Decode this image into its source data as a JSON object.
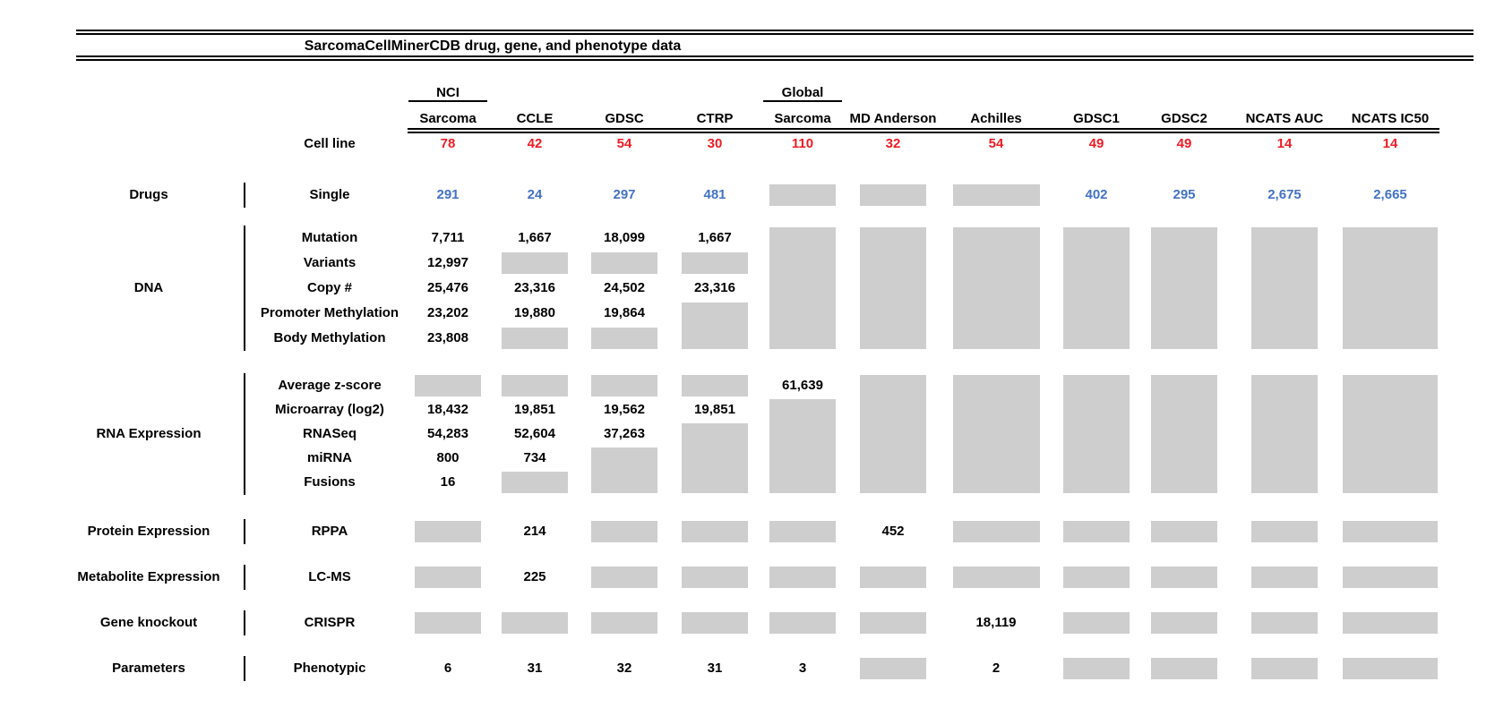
{
  "colors": {
    "red_count": "#ed1c24",
    "blue_drug": "#4472c4",
    "gray_missing": "#cecece",
    "rule_black": "#000000"
  },
  "chart_data": {
    "type": "table",
    "title": "SarcomaCellMinerCDB drug, gene, and phenotype data",
    "cell_line_label": "Cell line",
    "columns": [
      {
        "id": "nci-sarcoma",
        "top": "NCI",
        "label": "Sarcoma",
        "cell_lines": "78"
      },
      {
        "id": "ccle",
        "top": null,
        "label": "CCLE",
        "cell_lines": "42"
      },
      {
        "id": "gdsc",
        "top": null,
        "label": "GDSC",
        "cell_lines": "54"
      },
      {
        "id": "ctrp",
        "top": null,
        "label": "CTRP",
        "cell_lines": "30"
      },
      {
        "id": "global-sarcoma",
        "top": "Global",
        "label": "Sarcoma",
        "cell_lines": "110"
      },
      {
        "id": "md-anderson",
        "top": null,
        "label": "MD Anderson",
        "cell_lines": "32"
      },
      {
        "id": "achilles",
        "top": null,
        "label": "Achilles",
        "cell_lines": "54"
      },
      {
        "id": "gdsc1",
        "top": null,
        "label": "GDSC1",
        "cell_lines": "49"
      },
      {
        "id": "gdsc2",
        "top": null,
        "label": "GDSC2",
        "cell_lines": "49"
      },
      {
        "id": "ncats-auc",
        "top": null,
        "label": "NCATS AUC",
        "cell_lines": "14"
      },
      {
        "id": "ncats-ic50",
        "top": null,
        "label": "NCATS IC50",
        "cell_lines": "14"
      }
    ],
    "sections": [
      {
        "category": "Drugs",
        "rows": [
          {
            "label": "Single",
            "color": "blue",
            "cells": [
              "291",
              "24",
              "297",
              "481",
              {
                "gap": 1
              },
              {
                "gap": 1
              },
              {
                "gap": 1
              },
              "402",
              "295",
              "2,675",
              "2,665"
            ]
          }
        ]
      },
      {
        "category": "DNA",
        "rows": [
          {
            "label": "Mutation",
            "cells": [
              "7,711",
              "1,667",
              "18,099",
              "1,667",
              {
                "gap": 5
              },
              {
                "gap": 5
              },
              {
                "gap": 5
              },
              {
                "gap": 5
              },
              {
                "gap": 5
              },
              {
                "gap": 5
              },
              {
                "gap": 5
              }
            ]
          },
          {
            "label": "Variants",
            "cells": [
              "12,997",
              {
                "gap": 1
              },
              {
                "gap": 1
              },
              {
                "gap": 1
              },
              null,
              null,
              null,
              null,
              null,
              null,
              null
            ]
          },
          {
            "label": "Copy #",
            "cells": [
              "25,476",
              "23,316",
              "24,502",
              "23,316",
              null,
              null,
              null,
              null,
              null,
              null,
              null
            ]
          },
          {
            "label": "Promoter Methylation",
            "cells": [
              "23,202",
              "19,880",
              "19,864",
              {
                "gap": 2
              },
              null,
              null,
              null,
              null,
              null,
              null,
              null
            ]
          },
          {
            "label": "Body Methylation",
            "cells": [
              "23,808",
              {
                "gap": 1
              },
              {
                "gap": 1
              },
              null,
              null,
              null,
              null,
              null,
              null,
              null,
              null
            ]
          }
        ]
      },
      {
        "category": "RNA Expression",
        "rows": [
          {
            "label": "Average z-score",
            "cells": [
              {
                "gap": 1
              },
              {
                "gap": 1
              },
              {
                "gap": 1
              },
              {
                "gap": 1
              },
              "61,639",
              {
                "gap": 5
              },
              {
                "gap": 5
              },
              {
                "gap": 5
              },
              {
                "gap": 5
              },
              {
                "gap": 5
              },
              {
                "gap": 5
              }
            ]
          },
          {
            "label": "Microarray (log2)",
            "cells": [
              "18,432",
              "19,851",
              "19,562",
              "19,851",
              {
                "gap": 4
              },
              null,
              null,
              null,
              null,
              null,
              null
            ]
          },
          {
            "label": "RNASeq",
            "cells": [
              "54,283",
              "52,604",
              "37,263",
              {
                "gap": 3
              },
              null,
              null,
              null,
              null,
              null,
              null,
              null
            ]
          },
          {
            "label": "miRNA",
            "cells": [
              "800",
              "734",
              {
                "gap": 2
              },
              null,
              null,
              null,
              null,
              null,
              null,
              null,
              null
            ]
          },
          {
            "label": "Fusions",
            "cells": [
              "16",
              {
                "gap": 1
              },
              null,
              null,
              null,
              null,
              null,
              null,
              null,
              null,
              null
            ]
          }
        ]
      },
      {
        "category": "Protein Expression",
        "rows": [
          {
            "label": "RPPA",
            "cells": [
              {
                "gap": 1
              },
              "214",
              {
                "gap": 1
              },
              {
                "gap": 1
              },
              {
                "gap": 1
              },
              "452",
              {
                "gap": 1
              },
              {
                "gap": 1
              },
              {
                "gap": 1
              },
              {
                "gap": 1
              },
              {
                "gap": 1
              }
            ]
          }
        ]
      },
      {
        "category": "Metabolite Expression",
        "rows": [
          {
            "label": "LC-MS",
            "cells": [
              {
                "gap": 1
              },
              "225",
              {
                "gap": 1
              },
              {
                "gap": 1
              },
              {
                "gap": 1
              },
              {
                "gap": 1
              },
              {
                "gap": 1
              },
              {
                "gap": 1
              },
              {
                "gap": 1
              },
              {
                "gap": 1
              },
              {
                "gap": 1
              }
            ]
          }
        ]
      },
      {
        "category": "Gene knockout",
        "rows": [
          {
            "label": "CRISPR",
            "cells": [
              {
                "gap": 1
              },
              {
                "gap": 1
              },
              {
                "gap": 1
              },
              {
                "gap": 1
              },
              {
                "gap": 1
              },
              {
                "gap": 1
              },
              "18,119",
              {
                "gap": 1
              },
              {
                "gap": 1
              },
              {
                "gap": 1
              },
              {
                "gap": 1
              }
            ]
          }
        ]
      },
      {
        "category": "Parameters",
        "rows": [
          {
            "label": "Phenotypic",
            "cells": [
              "6",
              "31",
              "32",
              "31",
              "3",
              {
                "gap": 1
              },
              "2",
              {
                "gap": 1
              },
              {
                "gap": 1
              },
              {
                "gap": 1
              },
              {
                "gap": 1
              }
            ]
          }
        ]
      }
    ]
  }
}
